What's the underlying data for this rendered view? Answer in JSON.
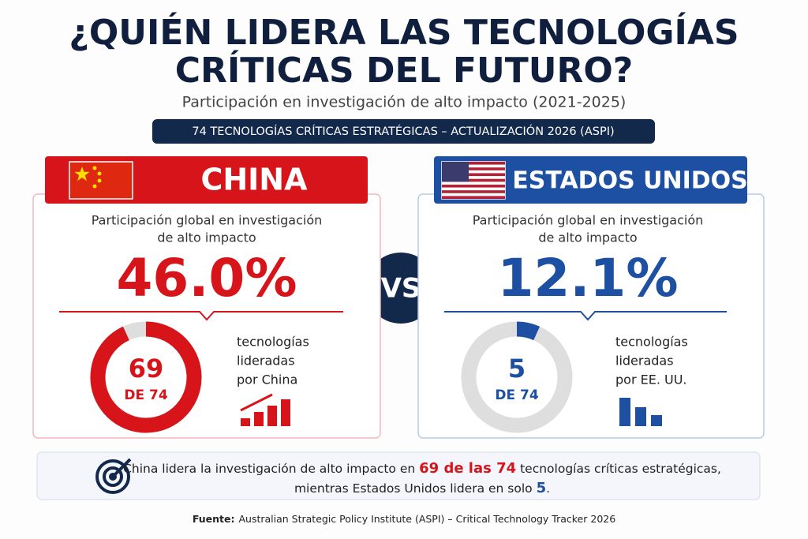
{
  "header": {
    "title_lines": [
      "¿QUIÉN LIDERA LAS TECNOLOGÍAS",
      "CRÍTICAS DEL FUTURO?"
    ],
    "subtitle": "Participación en investigación de alto impacto (2021-2025)",
    "badge": "74 TECNOLOGÍAS CRÍTICAS ESTRATÉGICAS – ACTUALIZACIÓN 2026 (ASPI)"
  },
  "panels": [
    {
      "name": "CHINA",
      "color": "#d7141a",
      "border": "#f1b9bb",
      "label_lines": [
        "Participación global en investigación",
        "de alto impacto"
      ],
      "share": "46.0%",
      "led": 69,
      "total": {
        "value": 74,
        "label": "DE 74"
      },
      "caption": [
        "tecnologías",
        "lideradas",
        "por China"
      ]
    },
    {
      "name": "ESTADOS UNIDOS",
      "color": "#1d4fa3",
      "border": "#b9cbe8",
      "label_lines": [
        "Participación global en investigación",
        "de alto impacto"
      ],
      "share": "12.1%",
      "led": 5,
      "total": {
        "value": 74,
        "label": "DE 74"
      },
      "caption": [
        "tecnologías",
        "lideradas",
        "por EE. UU."
      ]
    }
  ],
  "vs": "VS",
  "summary": {
    "line1": [
      "China lidera la investigación de alto impacto en ",
      "69 de las 74",
      " tecnologías críticas estratégicas,"
    ],
    "line2": [
      "mientras Estados Unidos lidera en solo ",
      "5",
      "."
    ]
  },
  "source": {
    "label": "Fuente:",
    "text": "Australian Strategic Policy Institute (ASPI) – Critical Technology Tracker 2026"
  }
}
